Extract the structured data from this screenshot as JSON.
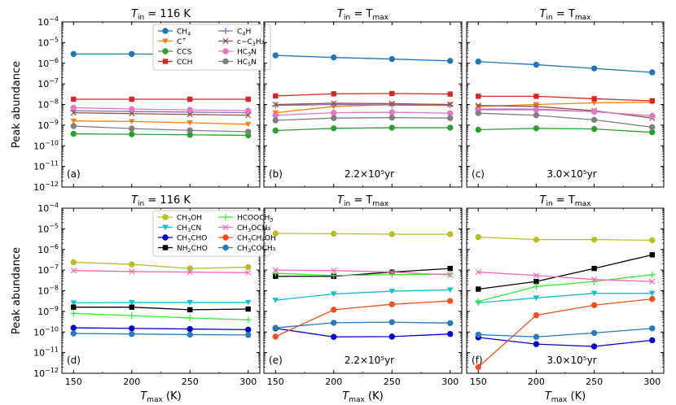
{
  "figure": {
    "ylabel": "Peak abundance",
    "xlabel_main": "T",
    "xlabel_sub": "max",
    "xlabel_unit": " (K)",
    "xticks": [
      150,
      200,
      250,
      300
    ],
    "yexp_min": -12,
    "yexp_max": -4
  },
  "chart_data": [
    {
      "type": "line",
      "id": "a",
      "panel_label": "(a)",
      "yscale": "log",
      "title_main": "T",
      "title_sub": "in",
      "title_rest": " = 116 K",
      "time_label": "",
      "x": [
        150,
        200,
        250,
        300
      ],
      "xlim": [
        140,
        310
      ],
      "ylim": [
        1e-12,
        0.0001
      ],
      "legend": {
        "position": "upper-center",
        "columns": 2
      },
      "series": [
        {
          "name": "CH4",
          "label_base": "CH",
          "label_sub": "4",
          "label_sup": "",
          "label_tail": "",
          "color": "#1f77b4",
          "marker": "o",
          "values": [
            2.8e-06,
            2.8e-06,
            2.7e-06,
            2.7e-06
          ]
        },
        {
          "name": "C+",
          "label_base": "C",
          "label_sub": "",
          "label_sup": "+",
          "label_tail": "",
          "color": "#ff7f0e",
          "marker": "v",
          "values": [
            1.6e-09,
            1.5e-09,
            1.3e-09,
            1.1e-09
          ]
        },
        {
          "name": "CCS",
          "label_base": "CCS",
          "label_sub": "",
          "label_sup": "",
          "label_tail": "",
          "color": "#2ca02c",
          "marker": "o",
          "values": [
            3.8e-10,
            3.6e-10,
            3.4e-10,
            3.2e-10
          ]
        },
        {
          "name": "CCH",
          "label_base": "CCH",
          "label_sub": "",
          "label_sup": "",
          "label_tail": "",
          "color": "#d62728",
          "marker": "s",
          "values": [
            1.8e-08,
            1.8e-08,
            1.8e-08,
            1.8e-08
          ]
        },
        {
          "name": "C4H",
          "label_base": "C",
          "label_sub": "4",
          "label_sup": "",
          "label_tail": "H",
          "color": "#9467bd",
          "marker": "+",
          "values": [
            5e-09,
            4.6e-09,
            4.3e-09,
            4e-09
          ]
        },
        {
          "name": "c-C3H2",
          "label_base": "c−C",
          "label_sub": "3",
          "label_sup": "",
          "label_tail": "H₂",
          "color": "#8c564b",
          "marker": "x",
          "values": [
            4e-09,
            3.6e-09,
            3.3e-09,
            3e-09
          ]
        },
        {
          "name": "HC3N",
          "label_base": "HC",
          "label_sub": "3",
          "label_sup": "",
          "label_tail": "N",
          "color": "#e377c2",
          "marker": "o",
          "values": [
            7e-09,
            6e-09,
            5.5e-09,
            5e-09
          ]
        },
        {
          "name": "HC5N",
          "label_base": "HC",
          "label_sub": "5",
          "label_sup": "",
          "label_tail": "N",
          "color": "#7f7f7f",
          "marker": "o",
          "values": [
            9e-10,
            6.8e-10,
            5.6e-10,
            4.8e-10
          ]
        }
      ]
    },
    {
      "type": "line",
      "id": "b",
      "panel_label": "(b)",
      "yscale": "log",
      "title_main": "T",
      "title_sub": "in",
      "title_rest": " = T",
      "title_sub2": "max",
      "time_label": "2.2×10⁵yr",
      "x": [
        150,
        200,
        250,
        300
      ],
      "xlim": [
        140,
        310
      ],
      "ylim": [
        1e-12,
        0.0001
      ],
      "series": [
        {
          "name": "CH4",
          "color": "#1f77b4",
          "marker": "o",
          "values": [
            2.4e-06,
            1.9e-06,
            1.6e-06,
            1.3e-06
          ]
        },
        {
          "name": "C+",
          "color": "#ff7f0e",
          "marker": "v",
          "values": [
            4e-09,
            8e-09,
            1e-08,
            1e-08
          ]
        },
        {
          "name": "CCS",
          "color": "#2ca02c",
          "marker": "o",
          "values": [
            5.5e-10,
            7e-10,
            7.5e-10,
            7.5e-10
          ]
        },
        {
          "name": "CCH",
          "color": "#d62728",
          "marker": "s",
          "values": [
            2.6e-08,
            3.3e-08,
            3.4e-08,
            3.2e-08
          ]
        },
        {
          "name": "C4H",
          "color": "#9467bd",
          "marker": "+",
          "values": [
            9e-09,
            1e-08,
            9.5e-09,
            9e-09
          ]
        },
        {
          "name": "c-C3H2",
          "color": "#8c564b",
          "marker": "x",
          "values": [
            1e-08,
            1.15e-08,
            1.1e-08,
            1e-08
          ]
        },
        {
          "name": "HC3N",
          "color": "#e377c2",
          "marker": "o",
          "values": [
            3e-09,
            4e-09,
            4.2e-09,
            3.8e-09
          ]
        },
        {
          "name": "HC5N",
          "color": "#7f7f7f",
          "marker": "o",
          "values": [
            1.7e-09,
            2.2e-09,
            2.3e-09,
            2.2e-09
          ]
        }
      ]
    },
    {
      "type": "line",
      "id": "c",
      "panel_label": "(c)",
      "yscale": "log",
      "title_main": "T",
      "title_sub": "in",
      "title_rest": " = T",
      "title_sub2": "max",
      "time_label": "3.0×10⁵yr",
      "x": [
        150,
        200,
        250,
        300
      ],
      "xlim": [
        140,
        310
      ],
      "ylim": [
        1e-12,
        0.0001
      ],
      "series": [
        {
          "name": "CH4",
          "color": "#1f77b4",
          "marker": "o",
          "values": [
            1.2e-06,
            8.5e-07,
            5.6e-07,
            3.6e-07
          ]
        },
        {
          "name": "C+",
          "color": "#ff7f0e",
          "marker": "v",
          "values": [
            8e-09,
            1e-08,
            1.2e-08,
            1.3e-08
          ]
        },
        {
          "name": "CCS",
          "color": "#2ca02c",
          "marker": "o",
          "values": [
            6e-10,
            7e-10,
            6.5e-10,
            4.5e-10
          ]
        },
        {
          "name": "CCH",
          "color": "#d62728",
          "marker": "s",
          "values": [
            2.5e-08,
            2.5e-08,
            1.9e-08,
            1.5e-08
          ]
        },
        {
          "name": "C4H",
          "color": "#9467bd",
          "marker": "+",
          "values": [
            6e-09,
            6e-09,
            4.5e-09,
            2.8e-09
          ]
        },
        {
          "name": "c-C3H2",
          "color": "#8c564b",
          "marker": "x",
          "values": [
            9e-09,
            8e-09,
            5e-09,
            2.2e-09
          ]
        },
        {
          "name": "HC3N",
          "color": "#e377c2",
          "marker": "o",
          "values": [
            5.5e-09,
            5.5e-09,
            4.5e-09,
            2.8e-09
          ]
        },
        {
          "name": "HC5N",
          "color": "#7f7f7f",
          "marker": "o",
          "values": [
            3.8e-09,
            3e-09,
            1.8e-09,
            8e-10
          ]
        }
      ]
    },
    {
      "type": "line",
      "id": "d",
      "panel_label": "(d)",
      "yscale": "log",
      "title_main": "T",
      "title_sub": "in",
      "title_rest": " = 116 K",
      "time_label": "",
      "x": [
        150,
        200,
        250,
        300
      ],
      "xlim": [
        140,
        310
      ],
      "ylim": [
        1e-12,
        0.0001
      ],
      "legend": {
        "position": "upper-center",
        "columns": 2
      },
      "series": [
        {
          "name": "CH3OH",
          "label_base": "CH",
          "label_sub": "3",
          "label_sup": "",
          "label_tail": "OH",
          "color": "#bcbd22",
          "marker": "o",
          "values": [
            2.4e-07,
            1.9e-07,
            1.2e-07,
            1.4e-07
          ]
        },
        {
          "name": "CH3CN",
          "label_base": "CH",
          "label_sub": "3",
          "label_sup": "",
          "label_tail": "CN",
          "color": "#17becf",
          "marker": "v",
          "values": [
            2.6e-09,
            2.7e-09,
            2.7e-09,
            2.7e-09
          ]
        },
        {
          "name": "CH3CHO",
          "label_base": "CH",
          "label_sub": "3",
          "label_sup": "",
          "label_tail": "CHO",
          "color": "#0000cc",
          "marker": "o",
          "values": [
            1.6e-10,
            1.5e-10,
            1.4e-10,
            1.3e-10
          ]
        },
        {
          "name": "NH2CHO",
          "label_base": "NH",
          "label_sub": "2",
          "label_sup": "",
          "label_tail": "CHO",
          "color": "#000000",
          "marker": "s",
          "values": [
            1.6e-09,
            1.6e-09,
            1.2e-09,
            1.3e-09
          ]
        },
        {
          "name": "HCOOCH3",
          "label_base": "HCOOCH",
          "label_sub": "3",
          "label_sup": "",
          "label_tail": "",
          "color": "#33ee33",
          "marker": "+",
          "values": [
            8e-10,
            6.2e-10,
            4.8e-10,
            3.9e-10
          ]
        },
        {
          "name": "CH3OCH3",
          "label_base": "CH",
          "label_sub": "3",
          "label_sup": "",
          "label_tail": "OCH₃",
          "color": "#ff69b4",
          "marker": "x",
          "values": [
            9.5e-08,
            8.5e-08,
            8e-08,
            7.5e-08
          ]
        },
        {
          "name": "CH3CH2OH",
          "label_base": "CH",
          "label_sub": "3",
          "label_sup": "",
          "label_tail": "CH₂OH",
          "color": "#f4511e",
          "marker": "o",
          "values": [
            null,
            null,
            null,
            null
          ]
        },
        {
          "name": "CH3COCH3",
          "label_base": "CH",
          "label_sub": "3",
          "label_sup": "",
          "label_tail": "COCH₃",
          "color": "#2b7bba",
          "marker": "o",
          "values": [
            8.5e-11,
            8e-11,
            7.5e-11,
            7.2e-11
          ]
        }
      ]
    },
    {
      "type": "line",
      "id": "e",
      "panel_label": "(e)",
      "yscale": "log",
      "title_main": "T",
      "title_sub": "in",
      "title_rest": " = T",
      "title_sub2": "max",
      "time_label": "2.2×10⁵yr",
      "x": [
        150,
        200,
        250,
        300
      ],
      "xlim": [
        140,
        310
      ],
      "ylim": [
        1e-12,
        0.0001
      ],
      "series": [
        {
          "name": "CH3OH",
          "color": "#bcbd22",
          "marker": "o",
          "values": [
            6e-06,
            5.8e-06,
            5.5e-06,
            5.5e-06
          ]
        },
        {
          "name": "CH3CN",
          "color": "#17becf",
          "marker": "v",
          "values": [
            3.5e-09,
            7e-09,
            9.5e-09,
            1.1e-08
          ]
        },
        {
          "name": "CH3CHO",
          "color": "#0000cc",
          "marker": "o",
          "values": [
            1.5e-10,
            5.8e-11,
            6e-11,
            8e-11
          ]
        },
        {
          "name": "NH2CHO",
          "color": "#000000",
          "marker": "s",
          "values": [
            5e-08,
            5e-08,
            8e-08,
            1.2e-07
          ]
        },
        {
          "name": "HCOOCH3",
          "color": "#33ee33",
          "marker": "+",
          "values": [
            7e-08,
            5.5e-08,
            6e-08,
            6.5e-08
          ]
        },
        {
          "name": "CH3OCH3",
          "color": "#ff69b4",
          "marker": "x",
          "values": [
            1e-07,
            9.5e-08,
            8e-08,
            5.8e-08
          ]
        },
        {
          "name": "CH3CH2OH",
          "color": "#f4511e",
          "marker": "o",
          "values": [
            6e-11,
            1.2e-09,
            2.2e-09,
            3.2e-09
          ]
        },
        {
          "name": "CH3COCH3",
          "color": "#2b7bba",
          "marker": "o",
          "values": [
            1.6e-10,
            2.8e-10,
            3e-10,
            2.7e-10
          ]
        }
      ]
    },
    {
      "type": "line",
      "id": "f",
      "panel_label": "(f)",
      "yscale": "log",
      "title_main": "T",
      "title_sub": "in",
      "title_rest": " = T",
      "title_sub2": "max",
      "time_label": "3.0×10⁵yr",
      "x": [
        150,
        200,
        250,
        300
      ],
      "xlim": [
        140,
        310
      ],
      "ylim": [
        1e-12,
        0.0001
      ],
      "series": [
        {
          "name": "CH3OH",
          "color": "#bcbd22",
          "marker": "o",
          "values": [
            4e-06,
            3e-06,
            3e-06,
            2.8e-06
          ]
        },
        {
          "name": "CH3CN",
          "color": "#17becf",
          "marker": "v",
          "values": [
            2.6e-09,
            4.5e-09,
            7.5e-09,
            7.5e-09
          ]
        },
        {
          "name": "CH3CHO",
          "color": "#0000cc",
          "marker": "o",
          "values": [
            5.5e-11,
            2.6e-11,
            2e-11,
            4e-11
          ]
        },
        {
          "name": "NH2CHO",
          "color": "#000000",
          "marker": "s",
          "values": [
            1.2e-08,
            2.8e-08,
            1.2e-07,
            5.5e-07
          ]
        },
        {
          "name": "HCOOCH3",
          "color": "#33ee33",
          "marker": "+",
          "values": [
            3e-09,
            1.6e-08,
            2.8e-08,
            6e-08
          ]
        },
        {
          "name": "CH3OCH3",
          "color": "#ff69b4",
          "marker": "x",
          "values": [
            8e-08,
            5.5e-08,
            3.5e-08,
            2.8e-08
          ]
        },
        {
          "name": "CH3CH2OH",
          "color": "#f4511e",
          "marker": "o",
          "values": [
            2e-12,
            6.5e-10,
            2e-09,
            4e-09
          ]
        },
        {
          "name": "CH3COCH3",
          "color": "#2b7bba",
          "marker": "o",
          "values": [
            7.5e-11,
            5.8e-11,
            9e-11,
            1.5e-10
          ]
        }
      ]
    }
  ]
}
